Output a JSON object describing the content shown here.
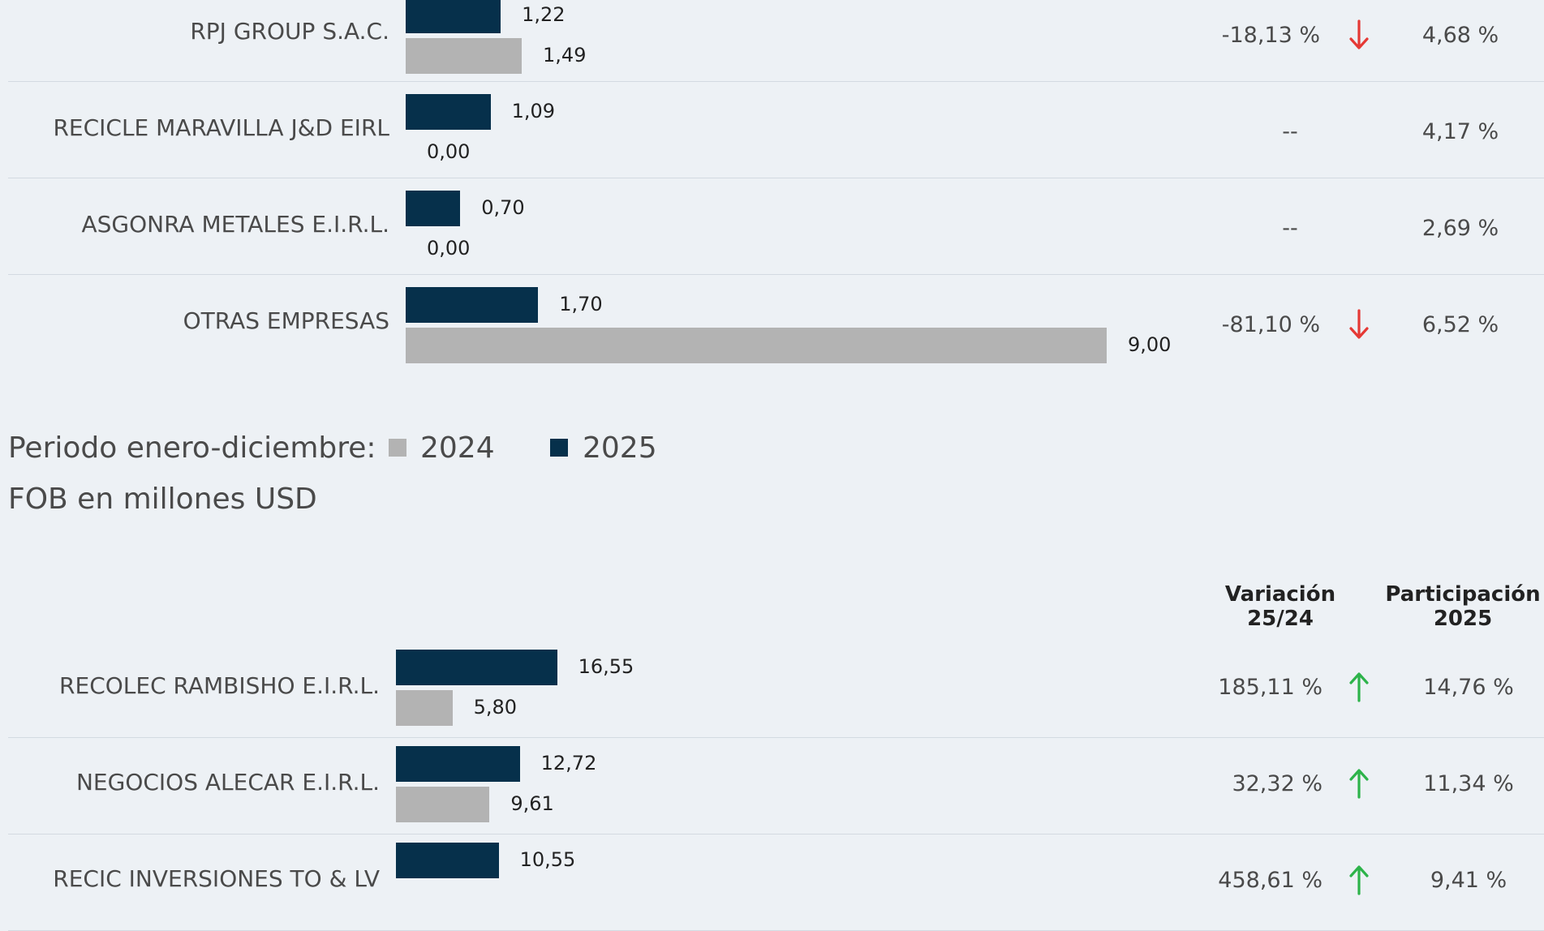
{
  "chart_data": [
    {
      "type": "bar",
      "orientation": "horizontal",
      "categories": [
        "RPJ GROUP S.A.C.",
        "RECICLE MARAVILLA J&D EIRL",
        "ASGONRA METALES E.I.R.L.",
        "OTRAS EMPRESAS"
      ],
      "series": [
        {
          "name": "2025",
          "color": "#06304b",
          "values": [
            1.22,
            1.09,
            0.7,
            1.7
          ],
          "labels": [
            "1,22",
            "1,09",
            "0,70",
            "1,70"
          ]
        },
        {
          "name": "2024",
          "color": "#b3b3b3",
          "values": [
            1.49,
            0.0,
            0.0,
            9.0
          ],
          "labels": [
            "1,49",
            "0,00",
            "0,00",
            "9,00"
          ]
        }
      ],
      "variacion": [
        "-18,13 %",
        "--",
        "--",
        "-81,10 %"
      ],
      "variacion_trend": [
        "down",
        "none",
        "none",
        "down"
      ],
      "participacion": [
        "4,68 %",
        "4,17 %",
        "2,69 %",
        "6,52 %"
      ]
    },
    {
      "type": "bar",
      "orientation": "horizontal",
      "categories": [
        "RECOLEC RAMBISHO E.I.R.L.",
        "NEGOCIOS ALECAR E.I.R.L.",
        "RECIC INVERSIONES TO & LV"
      ],
      "series": [
        {
          "name": "2025",
          "color": "#06304b",
          "values": [
            16.55,
            12.72,
            10.55
          ],
          "labels": [
            "16,55",
            "12,72",
            "10,55"
          ]
        },
        {
          "name": "2024",
          "color": "#b3b3b3",
          "values": [
            5.8,
            9.61,
            null
          ],
          "labels": [
            "5,80",
            "9,61",
            ""
          ]
        }
      ],
      "variacion": [
        "185,11 %",
        "32,32 %",
        "458,61 %"
      ],
      "variacion_trend": [
        "up",
        "up",
        "up"
      ],
      "participacion": [
        "14,76 %",
        "11,34 %",
        "9,41 %"
      ]
    }
  ],
  "legend": {
    "period_label": "Periodo enero-diciembre:",
    "items": [
      {
        "label": "2024",
        "color": "#b3b3b3"
      },
      {
        "label": "2025",
        "color": "#06304b"
      }
    ],
    "units": "FOB en millones USD"
  },
  "headers": {
    "variacion_line1": "Variación",
    "variacion_line2": "25/24",
    "participacion_line1": "Participación",
    "participacion_line2": "2025"
  },
  "colors": {
    "down_arrow": "#e53935",
    "up_arrow": "#2db34a",
    "background": "#edf1f5"
  }
}
